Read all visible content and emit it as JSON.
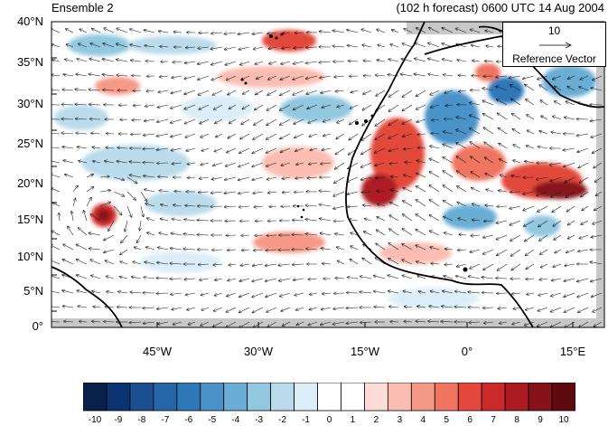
{
  "header": {
    "left_title": "Ensemble 2",
    "right_title": "(102 h forecast) 0600 UTC 14 Aug 2004"
  },
  "map": {
    "lat_labels": [
      "40°N",
      "35°N",
      "30°N",
      "25°N",
      "20°N",
      "15°N",
      "10°N",
      "5°N",
      "0°"
    ],
    "lon_labels": [
      "45°W",
      "30°W",
      "15°W",
      "0°",
      "15°E"
    ],
    "background_color": "#ffffff",
    "missing_color": "#c8c8c8"
  },
  "reference_vector": {
    "magnitude": "10",
    "caption": "Reference Vector"
  },
  "colorbar": {
    "labels": [
      "-10",
      "-9",
      "-8",
      "-7",
      "-6",
      "-5",
      "-4",
      "-3",
      "-2",
      "-1",
      "0",
      "1",
      "2",
      "3",
      "4",
      "5",
      "6",
      "7",
      "8",
      "9",
      "10"
    ],
    "colors": [
      "#08204a",
      "#0a3370",
      "#1b4f8f",
      "#2566a8",
      "#2f78b8",
      "#4a93c8",
      "#6aaed6",
      "#92c7e0",
      "#b9dbeb",
      "#dbeef7",
      "#ffffff",
      "#ffffff",
      "#fddbd6",
      "#fbbdb1",
      "#f69a87",
      "#ef7560",
      "#e2483b",
      "#cc2a2a",
      "#ac1a22",
      "#86121a",
      "#5e0a0f"
    ]
  }
}
